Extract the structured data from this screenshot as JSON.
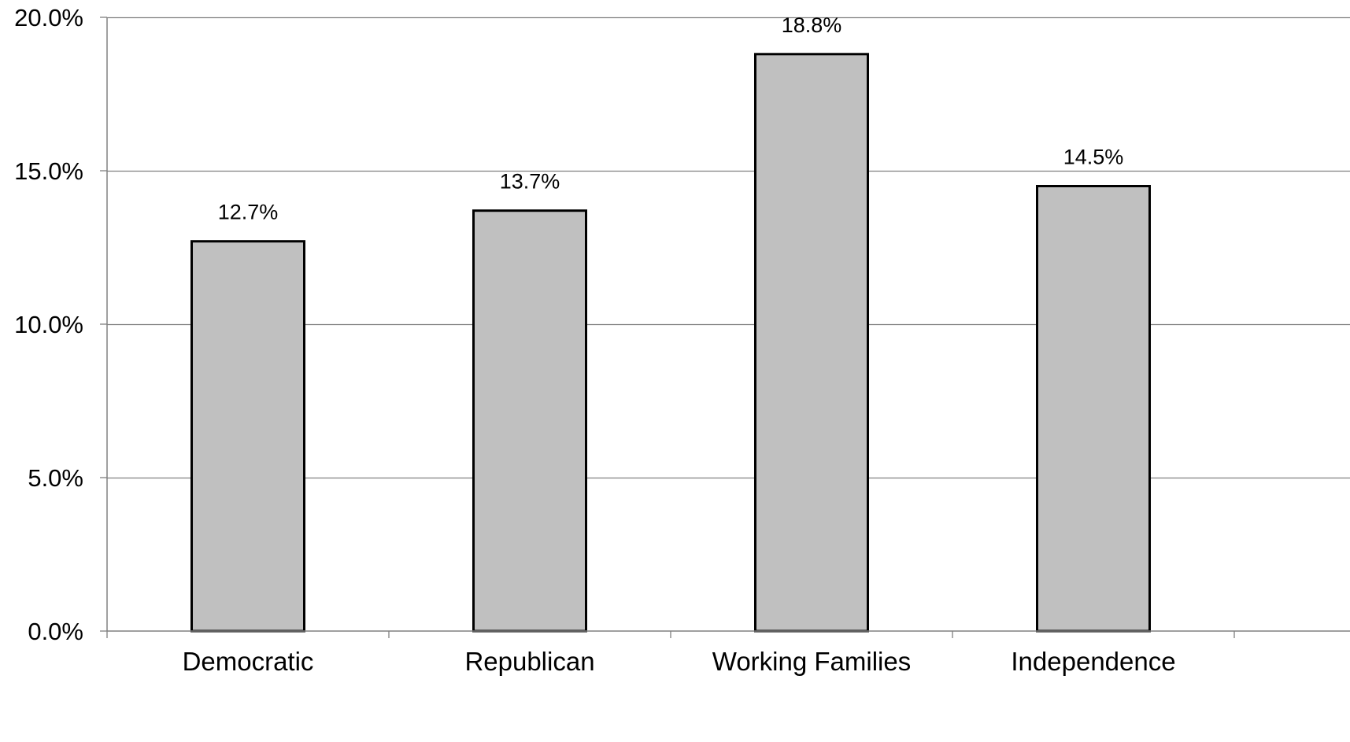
{
  "chart_data": {
    "type": "bar",
    "categories": [
      "Democratic",
      "Republican",
      "Working Families",
      "Independence"
    ],
    "values": [
      12.7,
      13.7,
      18.8,
      14.5
    ],
    "data_labels": [
      "12.7%",
      "13.7%",
      "18.8%",
      "14.5%"
    ],
    "title": "",
    "xlabel": "",
    "ylabel": "",
    "ylim": [
      0,
      20
    ],
    "yticks": [
      0,
      5,
      10,
      15,
      20
    ],
    "ytick_labels": [
      "0.0%",
      "5.0%",
      "10.0%",
      "15.0%",
      "20.0%"
    ],
    "grid": true,
    "legend": "none",
    "colors": {
      "bar_fill": "#c0c0c0",
      "bar_stroke": "#000000",
      "grid": "#808080",
      "axis": "#808080",
      "text": "#000000"
    }
  }
}
